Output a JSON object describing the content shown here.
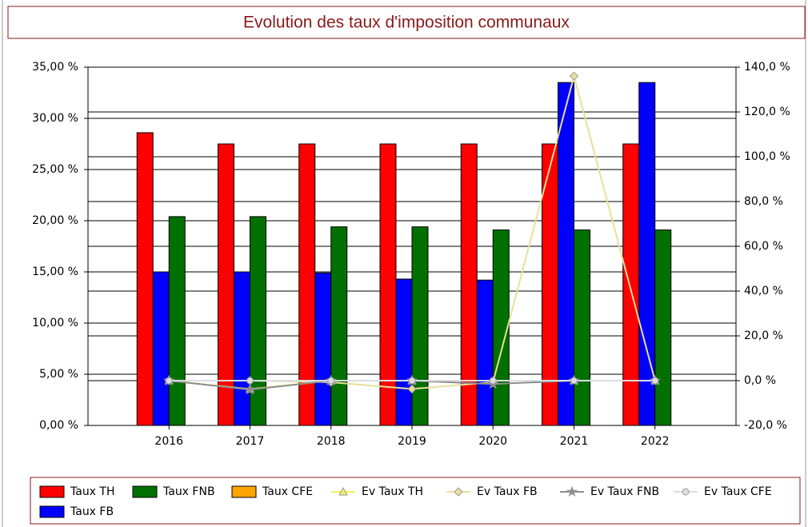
{
  "chart_data": {
    "type": "bar",
    "title": "Evolution des taux d'imposition communaux",
    "categories": [
      "2016",
      "2017",
      "2018",
      "2019",
      "2020",
      "2021",
      "2022"
    ],
    "series": [
      {
        "name": "Taux TH",
        "color": "#ff0000",
        "type": "bar",
        "values": [
          28.6,
          27.5,
          27.5,
          27.5,
          27.5,
          27.5,
          27.5
        ]
      },
      {
        "name": "Taux FB",
        "color": "#0000ff",
        "type": "bar",
        "values": [
          15.0,
          15.0,
          14.9,
          14.3,
          14.2,
          33.5,
          33.5
        ]
      },
      {
        "name": "Taux FNB",
        "color": "#007000",
        "type": "bar",
        "values": [
          20.4,
          20.4,
          19.4,
          19.4,
          19.1,
          19.1,
          19.1
        ]
      },
      {
        "name": "Taux CFE",
        "color": "#ffa500",
        "type": "bar",
        "values": [
          null,
          null,
          null,
          null,
          null,
          null,
          null
        ]
      },
      {
        "name": "Ev Taux TH",
        "color": "#f0f060",
        "type": "line",
        "marker": "triangle",
        "axis": "y2",
        "values": [
          0,
          -3.8,
          0,
          0,
          0,
          0,
          0
        ]
      },
      {
        "name": "Ev Taux FB",
        "color": "#e8e098",
        "type": "line",
        "marker": "diamond",
        "axis": "y2",
        "values": [
          0,
          0,
          -0.7,
          -3.7,
          -0.7,
          136,
          0
        ]
      },
      {
        "name": "Ev Taux FNB",
        "color": "#8c8c8c",
        "type": "line",
        "marker": "star",
        "axis": "y2",
        "values": [
          0,
          -4,
          0,
          0,
          -1.5,
          0,
          0
        ]
      },
      {
        "name": "Ev Taux CFE",
        "color": "#dcdce4",
        "type": "line",
        "marker": "circle",
        "axis": "y2",
        "values": [
          0,
          0,
          0,
          0,
          0,
          0,
          0
        ]
      }
    ],
    "ylim": [
      0,
      35
    ],
    "yticks": [
      {
        "value": 0,
        "label": "0,00 %"
      },
      {
        "value": 5,
        "label": "5,00 %"
      },
      {
        "value": 10,
        "label": "10,00 %"
      },
      {
        "value": 15,
        "label": "15,00 %"
      },
      {
        "value": 20,
        "label": "20,00 %"
      },
      {
        "value": 25,
        "label": "25,00 %"
      },
      {
        "value": 30,
        "label": "30,00 %"
      },
      {
        "value": 35,
        "label": "35,00 %"
      }
    ],
    "y2lim": [
      -20,
      140
    ],
    "y2ticks": [
      {
        "value": -20,
        "label": "-20,0 %"
      },
      {
        "value": 0,
        "label": "0,0 %"
      },
      {
        "value": 20,
        "label": "20,0 %"
      },
      {
        "value": 40,
        "label": "40,0 %"
      },
      {
        "value": 60,
        "label": "60,0 %"
      },
      {
        "value": 80,
        "label": "80,0 %"
      },
      {
        "value": 100,
        "label": "100,0 %"
      },
      {
        "value": 120,
        "label": "120,0 %"
      },
      {
        "value": 140,
        "label": "140,0 %"
      }
    ],
    "grid": true,
    "legend": "bottom"
  }
}
